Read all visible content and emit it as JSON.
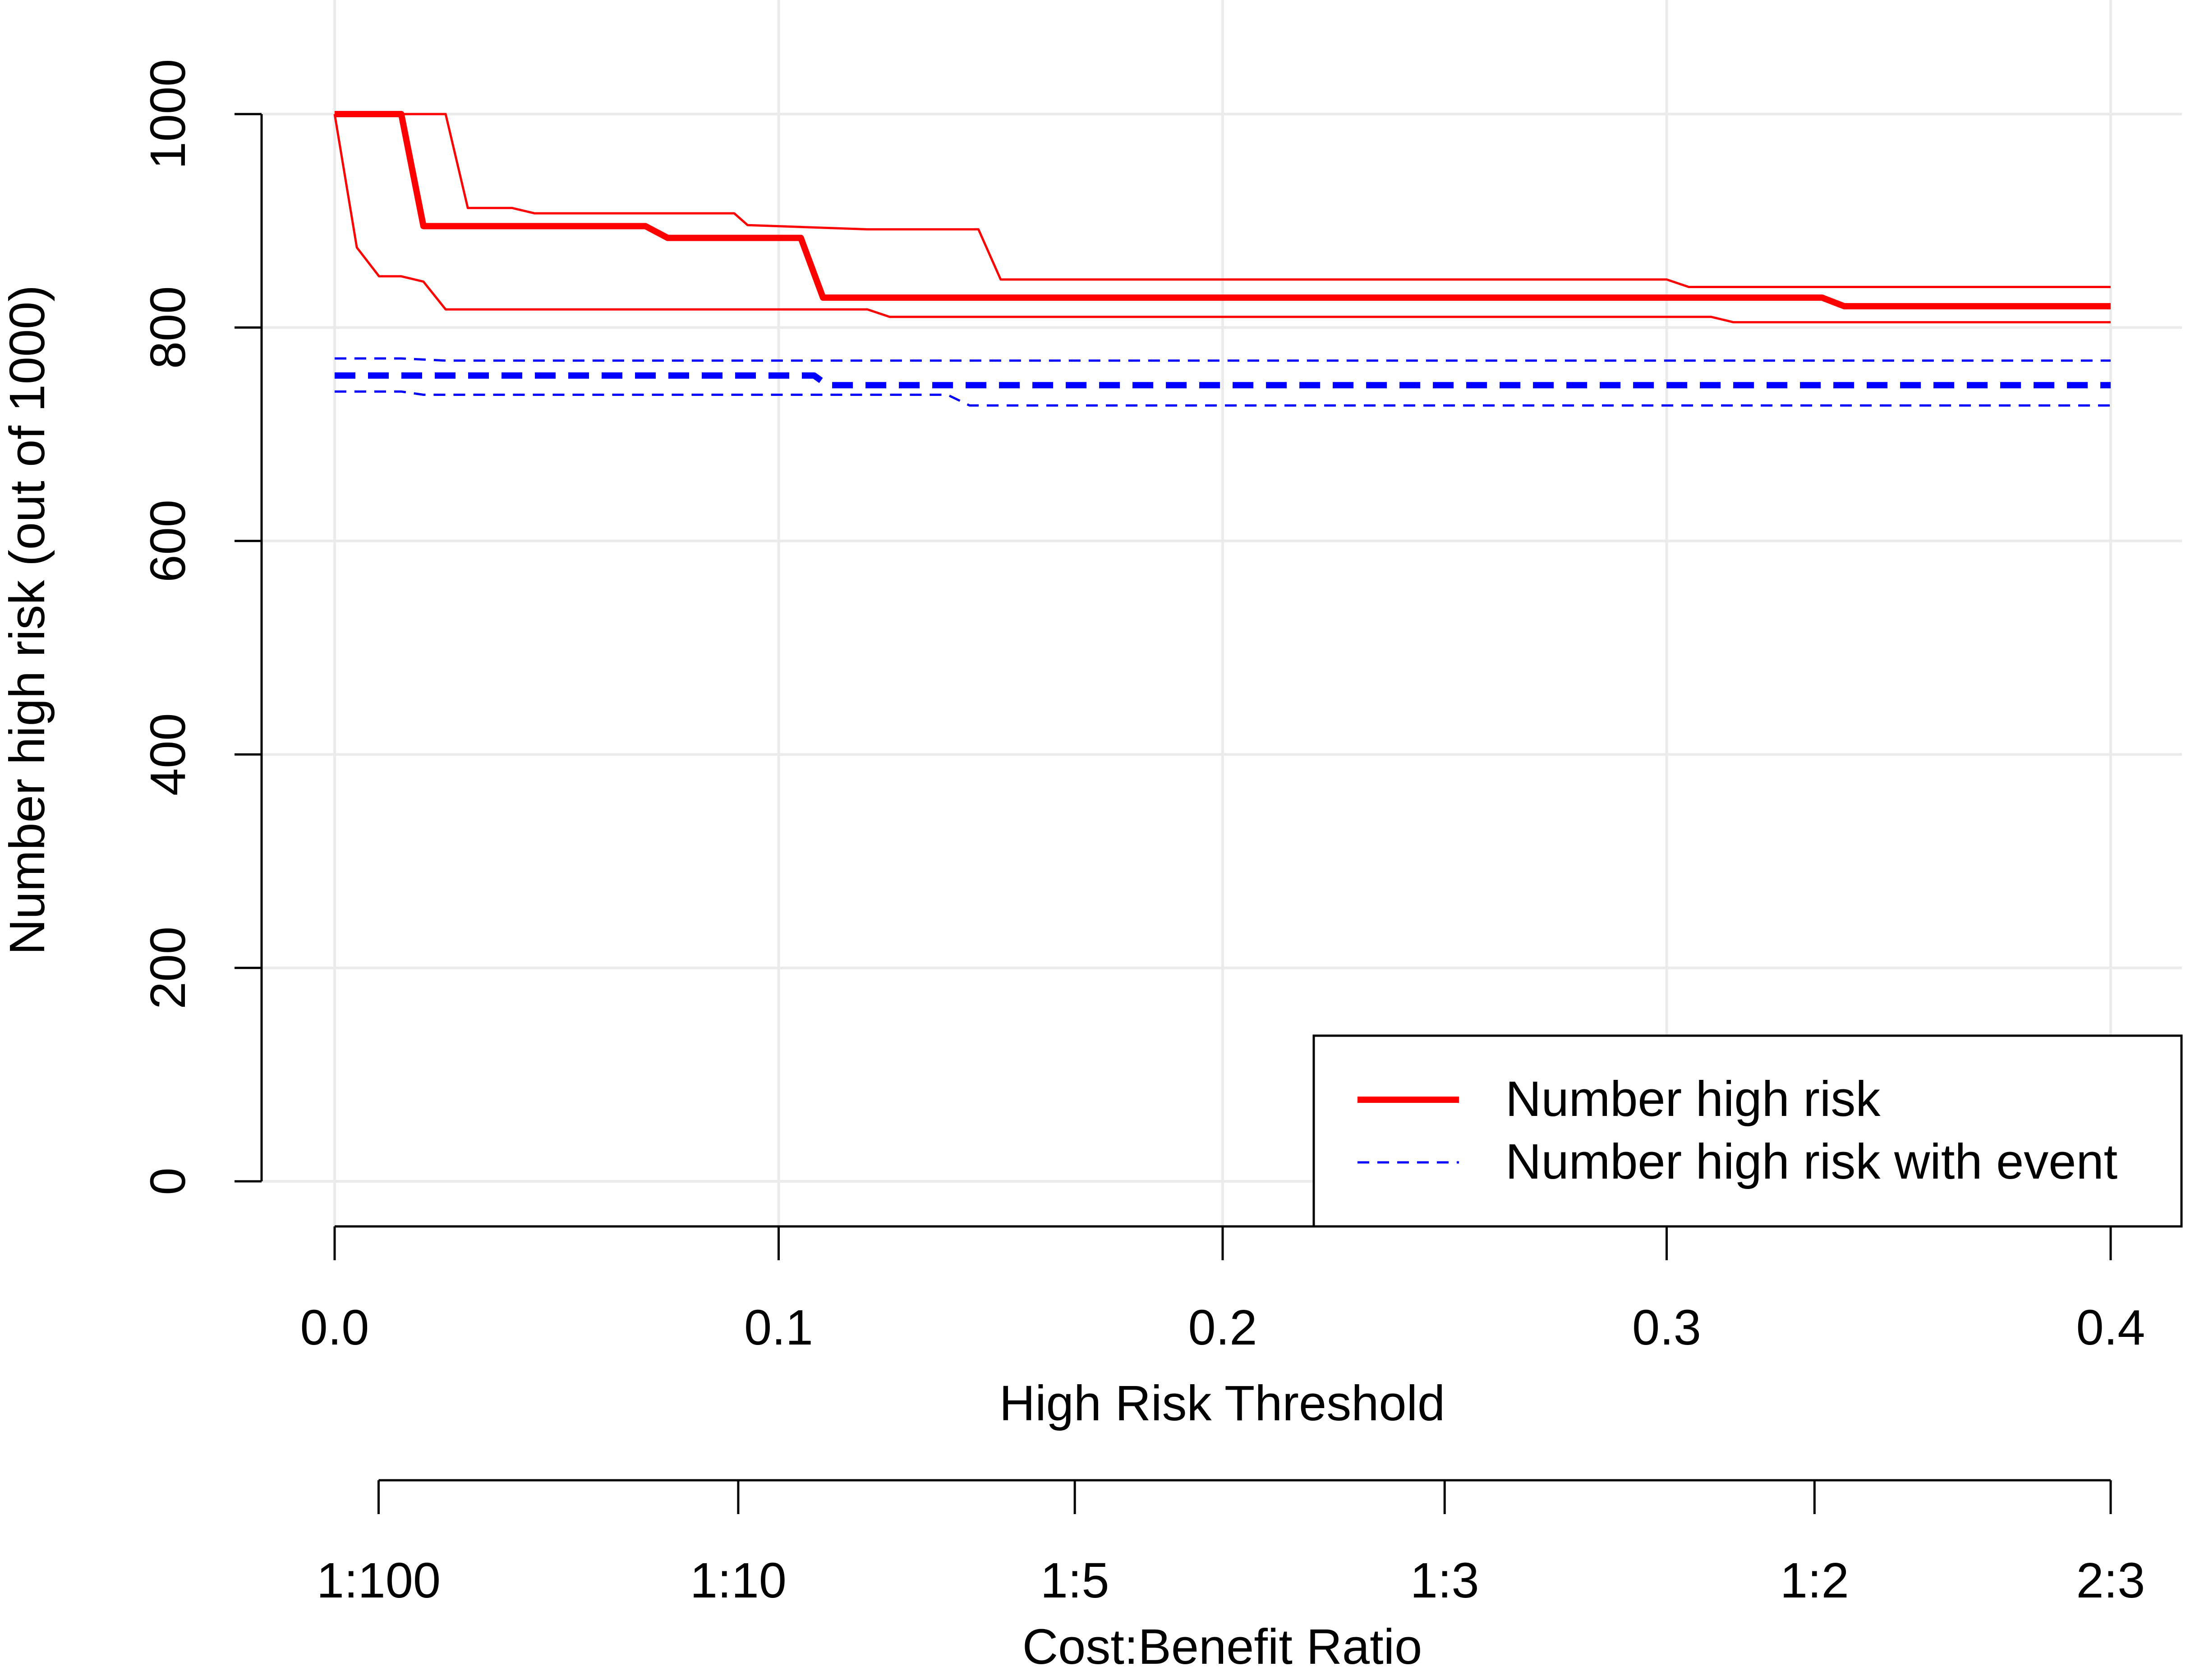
{
  "chart_data": {
    "type": "line",
    "title": "",
    "xlabel": "High Risk Threshold",
    "ylabel": "Number high risk (out of 1000)",
    "xlim": [
      0,
      0.4
    ],
    "ylim": [
      0,
      1000
    ],
    "x_ticks": [
      0.0,
      0.1,
      0.2,
      0.3,
      0.4
    ],
    "x_tick_labels": [
      "0.0",
      "0.1",
      "0.2",
      "0.3",
      "0.4"
    ],
    "y_ticks": [
      0,
      200,
      400,
      600,
      800,
      1000
    ],
    "y_tick_labels": [
      "0",
      "200",
      "400",
      "600",
      "800",
      "1000"
    ],
    "grid": true,
    "legend_position": "bottom-right",
    "secondary_axis": {
      "label": "Cost:Benefit Ratio",
      "ticks": [
        {
          "x": 0.0099,
          "label": "1:100"
        },
        {
          "x": 0.0909,
          "label": "1:10"
        },
        {
          "x": 0.1667,
          "label": "1:5"
        },
        {
          "x": 0.25,
          "label": "1:3"
        },
        {
          "x": 0.3333,
          "label": "1:2"
        },
        {
          "x": 0.4,
          "label": "2:3"
        }
      ]
    },
    "legend": [
      {
        "label": "Number high risk",
        "color": "#ff0000",
        "style": "solid"
      },
      {
        "label": "Number high risk with event",
        "color": "#0000ff",
        "style": "dashed"
      }
    ],
    "series": [
      {
        "name": "Number high risk",
        "role": "estimate",
        "color": "#ff0000",
        "style": "solid",
        "x": [
          0,
          0.015,
          0.02,
          0.07,
          0.075,
          0.105,
          0.11,
          0.335,
          0.34,
          0.4
        ],
        "y": [
          1000,
          1000,
          895,
          895,
          884,
          884,
          828,
          828,
          820,
          820
        ]
      },
      {
        "name": "Number high risk upper CI",
        "role": "upper",
        "color": "#ff0000",
        "style": "solid",
        "x": [
          0,
          0.025,
          0.03,
          0.04,
          0.045,
          0.09,
          0.093,
          0.12,
          0.145,
          0.15,
          0.3,
          0.305,
          0.4
        ],
        "y": [
          1000,
          1000,
          912,
          912,
          907,
          907,
          896,
          892,
          892,
          845,
          845,
          838,
          838
        ]
      },
      {
        "name": "Number high risk lower CI",
        "role": "lower",
        "color": "#ff0000",
        "style": "solid",
        "x": [
          0,
          0.005,
          0.01,
          0.015,
          0.02,
          0.025,
          0.12,
          0.125,
          0.31,
          0.315,
          0.4
        ],
        "y": [
          1000,
          875,
          848,
          848,
          843,
          817,
          817,
          810,
          810,
          805,
          805
        ]
      },
      {
        "name": "Number high risk with event",
        "role": "estimate",
        "color": "#0000ff",
        "style": "dashed",
        "x": [
          0,
          0.108,
          0.111,
          0.4
        ],
        "y": [
          755,
          755,
          746,
          746
        ]
      },
      {
        "name": "Number high risk with event upper CI",
        "role": "upper",
        "color": "#0000ff",
        "style": "dashed",
        "x": [
          0,
          0.015,
          0.025,
          0.4
        ],
        "y": [
          771,
          771,
          769,
          769
        ]
      },
      {
        "name": "Number high risk with event lower CI",
        "role": "lower",
        "color": "#0000ff",
        "style": "dashed",
        "x": [
          0,
          0.015,
          0.02,
          0.138,
          0.143,
          0.4
        ],
        "y": [
          740,
          740,
          737,
          737,
          727,
          727
        ]
      }
    ]
  }
}
